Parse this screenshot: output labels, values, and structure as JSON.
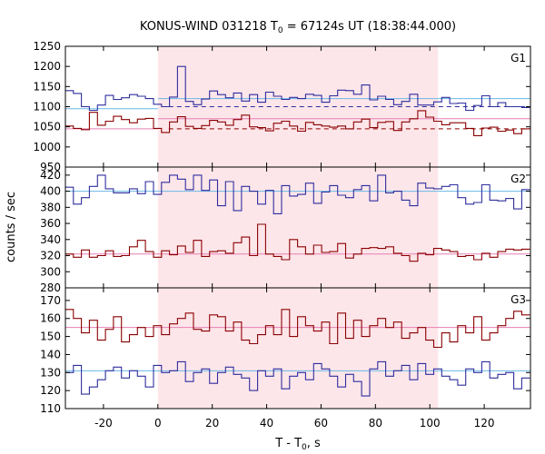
{
  "chart_data": {
    "type": "line",
    "title_prefix": "KONUS-WIND 031218 T",
    "title_sub": "0",
    "title_suffix": " = 67124s UT (18:38:44.000)",
    "xlabel_prefix": "T - T",
    "xlabel_sub": "0",
    "xlabel_suffix": ", s",
    "ylabel": "counts / sec",
    "xlim": [
      -34,
      137
    ],
    "xticks": [
      -20,
      0,
      20,
      40,
      60,
      80,
      100,
      120
    ],
    "interval": [
      0,
      103
    ],
    "colors": {
      "blue": "#2e2e9e",
      "red": "#8b0000",
      "bg_blue": "#6ab8e6",
      "bg_red": "#e67fb3",
      "shade": "#fde6ea"
    },
    "panels": [
      {
        "name": "G1",
        "ylim": [
          950,
          1250
        ],
        "yticks": [
          950,
          1000,
          1050,
          1100,
          1150,
          1200,
          1250
        ],
        "x_start": -34,
        "step": 2.944,
        "blue_bg": 1095,
        "red_bg": 1045,
        "blue_bg2": 1120,
        "red_bg2": 1070,
        "bg_split": 0,
        "blue_dashed": [
          4,
          1100
        ],
        "red_dashed": [
          4,
          1045
        ],
        "blue_values": [
          1140,
          1133,
          1100,
          1091,
          1104,
          1128,
          1118,
          1122,
          1130,
          1126,
          1120,
          1106,
          1100,
          1124,
          1200,
          1113,
          1105,
          1119,
          1139,
          1130,
          1122,
          1134,
          1114,
          1130,
          1111,
          1136,
          1126,
          1118,
          1123,
          1120,
          1131,
          1128,
          1111,
          1127,
          1141,
          1140,
          1131,
          1154,
          1117,
          1126,
          1118,
          1105,
          1113,
          1131,
          1104,
          1104,
          1112,
          1123,
          1108,
          1109,
          1091,
          1103,
          1127,
          1100,
          1110,
          1100,
          1100,
          1098
        ],
        "red_values": [
          1052,
          1046,
          1043,
          1086,
          1054,
          1064,
          1076,
          1068,
          1060,
          1069,
          1071,
          1046,
          1036,
          1062,
          1075,
          1051,
          1046,
          1053,
          1066,
          1062,
          1054,
          1068,
          1079,
          1050,
          1048,
          1040,
          1059,
          1064,
          1052,
          1039,
          1061,
          1055,
          1052,
          1049,
          1052,
          1045,
          1062,
          1069,
          1048,
          1061,
          1063,
          1041,
          1062,
          1070,
          1090,
          1074,
          1064,
          1055,
          1060,
          1060,
          1046,
          1028,
          1047,
          1049,
          1039,
          1042,
          1033,
          1045
        ]
      },
      {
        "name": "G2",
        "ylim": [
          280,
          430
        ],
        "yticks": [
          280,
          300,
          320,
          340,
          360,
          380,
          400,
          420
        ],
        "x_start": -34,
        "step": 2.944,
        "blue_bg": 400,
        "red_bg": 322,
        "blue_values": [
          405,
          384,
          392,
          406,
          420,
          403,
          398,
          398,
          403,
          397,
          412,
          396,
          411,
          420,
          415,
          402,
          420,
          401,
          414,
          382,
          412,
          376,
          406,
          400,
          384,
          401,
          372,
          407,
          394,
          396,
          410,
          385,
          399,
          407,
          395,
          392,
          402,
          407,
          388,
          420,
          398,
          400,
          389,
          382,
          410,
          404,
          403,
          406,
          408,
          392,
          384,
          386,
          408,
          389,
          388,
          391,
          378,
          402
        ],
        "red_values": [
          322,
          318,
          327,
          318,
          320,
          326,
          319,
          320,
          331,
          339,
          325,
          318,
          326,
          321,
          332,
          324,
          339,
          319,
          325,
          326,
          323,
          336,
          343,
          320,
          359,
          322,
          319,
          315,
          340,
          331,
          322,
          333,
          324,
          325,
          335,
          317,
          322,
          329,
          330,
          329,
          331,
          323,
          320,
          313,
          323,
          321,
          329,
          327,
          325,
          319,
          320,
          315,
          323,
          318,
          325,
          328,
          327,
          328
        ]
      },
      {
        "name": "G3",
        "ylim": [
          110,
          177
        ],
        "yticks": [
          110,
          120,
          130,
          140,
          150,
          160,
          170
        ],
        "x_start": -34,
        "step": 2.944,
        "blue_bg": 131,
        "red_bg": 155,
        "blue_values": [
          130,
          134,
          118,
          122,
          126,
          131,
          133,
          127,
          131,
          128,
          122,
          134,
          130,
          131,
          136,
          125,
          130,
          132,
          124,
          130,
          133,
          129,
          127,
          120,
          131,
          128,
          132,
          121,
          128,
          130,
          126,
          135,
          132,
          128,
          122,
          129,
          125,
          117,
          132,
          136,
          128,
          131,
          134,
          126,
          135,
          129,
          132,
          128,
          126,
          123,
          132,
          130,
          136,
          127,
          129,
          130,
          121,
          127
        ],
        "red_values": [
          165,
          160,
          152,
          159,
          148,
          154,
          161,
          147,
          151,
          155,
          150,
          156,
          151,
          157,
          160,
          163,
          154,
          153,
          162,
          161,
          153,
          158,
          148,
          146,
          151,
          156,
          151,
          165,
          150,
          161,
          156,
          153,
          158,
          146,
          163,
          149,
          159,
          150,
          156,
          160,
          155,
          158,
          149,
          152,
          155,
          148,
          144,
          152,
          147,
          156,
          152,
          161,
          148,
          152,
          156,
          160,
          164,
          162
        ]
      }
    ]
  }
}
